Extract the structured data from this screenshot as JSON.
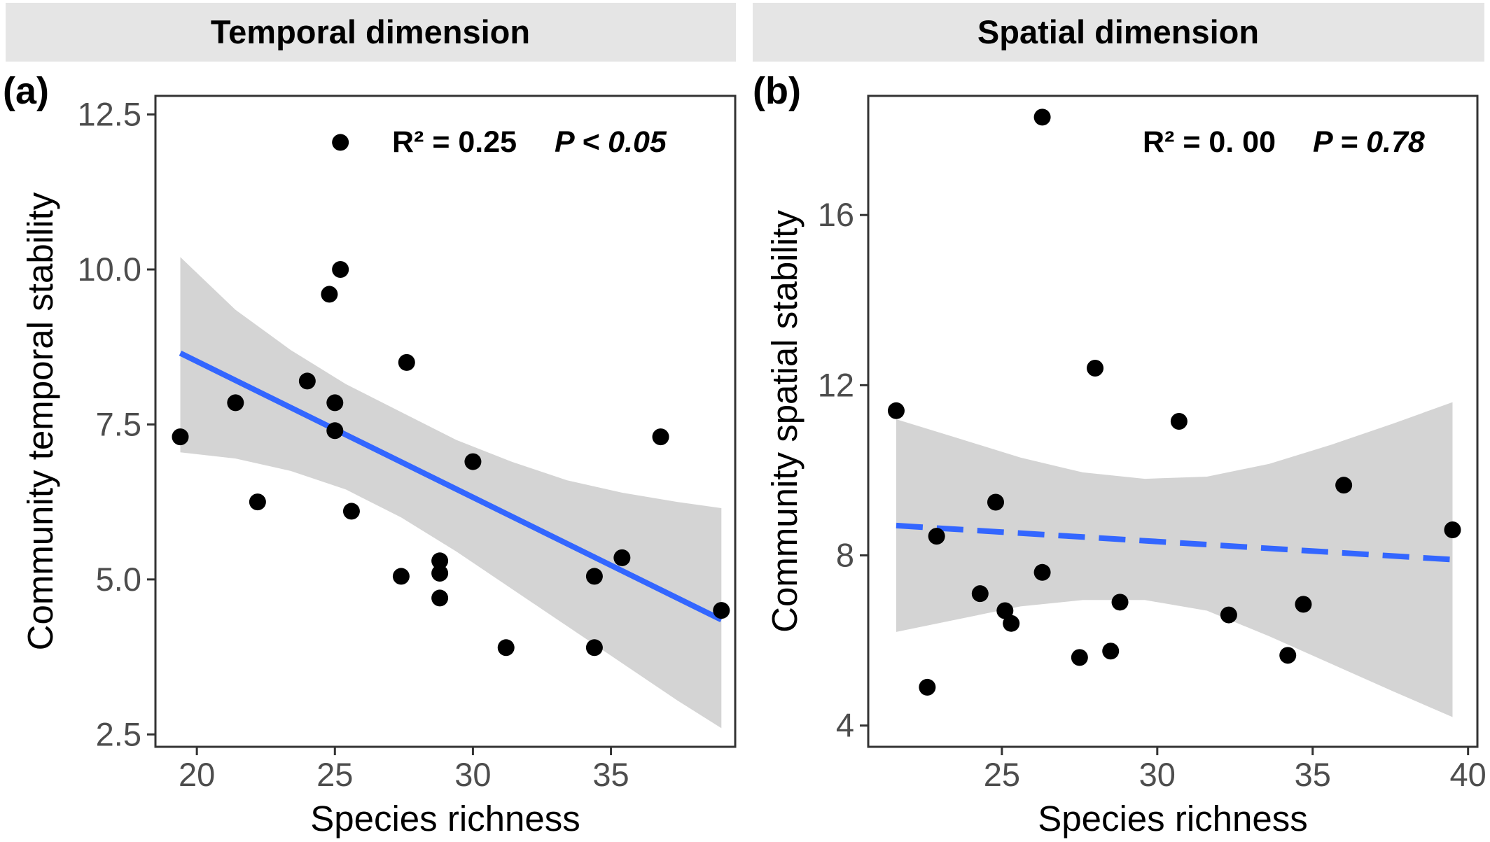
{
  "strips": [
    "Temporal dimension",
    "Spatial dimension"
  ],
  "chart_data": [
    {
      "type": "scatter",
      "panel_label": "(a)",
      "title": "Temporal dimension",
      "xlabel": "Species richness",
      "ylabel": "Community temporal stability",
      "xlim": [
        18.5,
        39.5
      ],
      "ylim": [
        2.3,
        12.8
      ],
      "xticks": [
        20,
        25,
        30,
        35
      ],
      "yticks": [
        2.5,
        5.0,
        7.5,
        10.0,
        12.5
      ],
      "ytick_labels": [
        "2.5",
        "5.0",
        "7.5",
        "10.0",
        "12.5"
      ],
      "grid": false,
      "annotation": {
        "r2": "R² = 0.25",
        "p": "P < 0.05"
      },
      "points": [
        [
          19.4,
          7.3
        ],
        [
          21.4,
          7.85
        ],
        [
          22.2,
          6.25
        ],
        [
          24.0,
          8.2
        ],
        [
          24.8,
          9.6
        ],
        [
          25.0,
          7.85
        ],
        [
          25.0,
          7.4
        ],
        [
          25.2,
          12.05
        ],
        [
          25.2,
          10.0
        ],
        [
          25.6,
          6.1
        ],
        [
          27.4,
          5.05
        ],
        [
          27.6,
          8.5
        ],
        [
          28.8,
          5.3
        ],
        [
          28.8,
          5.1
        ],
        [
          28.8,
          4.7
        ],
        [
          30.0,
          6.9
        ],
        [
          31.2,
          3.9
        ],
        [
          34.4,
          5.05
        ],
        [
          34.4,
          3.9
        ],
        [
          35.4,
          5.35
        ],
        [
          36.8,
          7.3
        ],
        [
          39.0,
          4.5
        ]
      ],
      "fit": {
        "x": [
          19.4,
          39.0
        ],
        "y": [
          8.65,
          4.35
        ],
        "style": "solid",
        "color": "#3366ff"
      },
      "ci_band": {
        "x": [
          19.4,
          21.4,
          23.4,
          25.4,
          27.4,
          29.4,
          31.4,
          33.4,
          35.4,
          37.4,
          39.0
        ],
        "lower": [
          7.05,
          6.95,
          6.75,
          6.45,
          6.0,
          5.45,
          4.85,
          4.25,
          3.65,
          3.05,
          2.6
        ],
        "upper": [
          10.2,
          9.35,
          8.7,
          8.15,
          7.7,
          7.25,
          6.9,
          6.6,
          6.4,
          6.25,
          6.15
        ]
      },
      "colors": {
        "points": "#000000",
        "line": "#3366ff",
        "band": "#cccccc"
      }
    },
    {
      "type": "scatter",
      "panel_label": "(b)",
      "title": "Spatial dimension",
      "xlabel": "Species richness",
      "ylabel": "Community spatial stability",
      "xlim": [
        20.7,
        40.3
      ],
      "ylim": [
        3.5,
        18.8
      ],
      "xticks": [
        25,
        30,
        35,
        40
      ],
      "yticks": [
        4,
        8,
        12,
        16
      ],
      "ytick_labels": [
        "4",
        "8",
        "12",
        "16"
      ],
      "grid": false,
      "annotation": {
        "r2": "R² = 0. 00",
        "p": "P = 0.78"
      },
      "points": [
        [
          21.6,
          11.4
        ],
        [
          22.6,
          4.9
        ],
        [
          22.9,
          8.45
        ],
        [
          24.3,
          7.1
        ],
        [
          24.8,
          9.25
        ],
        [
          25.1,
          6.7
        ],
        [
          25.3,
          6.4
        ],
        [
          26.3,
          18.3
        ],
        [
          26.3,
          7.6
        ],
        [
          27.5,
          5.6
        ],
        [
          28.0,
          12.4
        ],
        [
          28.5,
          5.75
        ],
        [
          28.8,
          6.9
        ],
        [
          30.7,
          11.15
        ],
        [
          32.3,
          6.6
        ],
        [
          34.2,
          5.65
        ],
        [
          34.7,
          6.85
        ],
        [
          36.0,
          9.65
        ],
        [
          39.5,
          8.6
        ]
      ],
      "fit": {
        "x": [
          21.6,
          39.5
        ],
        "y": [
          8.7,
          7.9
        ],
        "style": "dashed",
        "color": "#3366ff"
      },
      "ci_band": {
        "x": [
          21.6,
          23.6,
          25.6,
          27.6,
          29.6,
          31.6,
          33.6,
          35.6,
          37.6,
          39.5
        ],
        "lower": [
          6.2,
          6.5,
          6.8,
          6.95,
          6.95,
          6.7,
          6.1,
          5.45,
          4.8,
          4.2
        ],
        "upper": [
          11.2,
          10.75,
          10.3,
          9.95,
          9.8,
          9.85,
          10.15,
          10.6,
          11.1,
          11.6
        ]
      },
      "colors": {
        "points": "#000000",
        "line": "#3366ff",
        "band": "#cccccc"
      }
    }
  ]
}
